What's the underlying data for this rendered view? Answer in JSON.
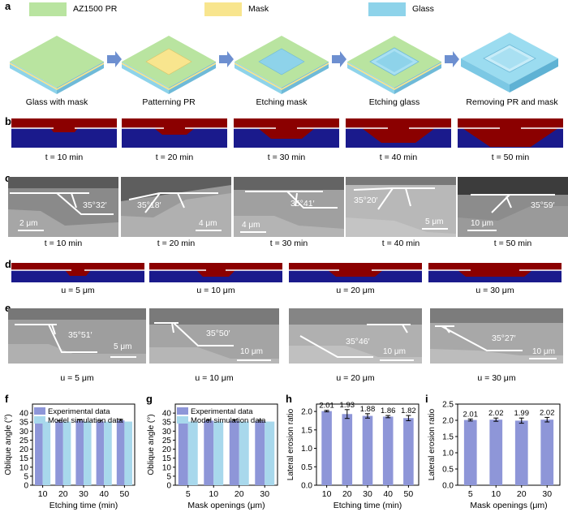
{
  "panel_letters": {
    "a": "a",
    "b": "b",
    "c": "c",
    "d": "d",
    "e": "e",
    "f": "f",
    "g": "g",
    "h": "h",
    "i": "i"
  },
  "legend_a": [
    {
      "label": "AZ1500 PR",
      "color": "#b9e4a0"
    },
    {
      "label": "Mask",
      "color": "#f8e58e"
    },
    {
      "label": "Glass",
      "color": "#8ed3ea"
    }
  ],
  "steps": [
    "Glass with mask",
    "Patterning PR",
    "Etching mask",
    "Etching glass",
    "Removing PR and mask"
  ],
  "sim_b_captions": [
    "t = 10 min",
    "t = 20 min",
    "t = 30 min",
    "t = 40 min",
    "t = 50 min"
  ],
  "sem_c": [
    {
      "caption": "t = 10 min",
      "angle": "35°32′",
      "scale": "2 μm"
    },
    {
      "caption": "t = 20 min",
      "angle": "35°18′",
      "scale": "4 μm"
    },
    {
      "caption": "t = 30 min",
      "angle": "35°41′",
      "scale": "4 μm"
    },
    {
      "caption": "t = 40 min",
      "angle": "35°20′",
      "scale": "5 μm"
    },
    {
      "caption": "t = 50 min",
      "angle": "35°59′",
      "scale": "10 μm"
    }
  ],
  "sim_d_captions": [
    "u = 5 μm",
    "u = 10 μm",
    "u = 20 μm",
    "u = 30 μm"
  ],
  "sem_e": [
    {
      "caption": "u = 5 μm",
      "angle": "35°51′",
      "scale": "5 μm"
    },
    {
      "caption": "u = 10 μm",
      "angle": "35°50′",
      "scale": "10 μm"
    },
    {
      "caption": "u = 20 μm",
      "angle": "35°46′",
      "scale": "10 μm"
    },
    {
      "caption": "u = 30 μm",
      "angle": "35°27′",
      "scale": "10 μm"
    }
  ],
  "colors": {
    "sim_red": "#8b0000",
    "sim_blue": "#1a1a8c",
    "exp_bar": "#8e96d8",
    "sim_bar": "#a8d8ec",
    "ratio_bar": "#8e96d8"
  },
  "chart_data": [
    {
      "id": "f",
      "type": "bar",
      "categories": [
        "10",
        "20",
        "30",
        "40",
        "50"
      ],
      "xlabel": "Etching time (min)",
      "ylabel": "Oblique angle (°)",
      "ylim": [
        0,
        45
      ],
      "yticks": [
        0,
        5,
        10,
        15,
        20,
        25,
        30,
        35,
        40
      ],
      "legend": "top-left",
      "series": [
        {
          "name": "Experimental data",
          "values": [
            35.5,
            35.3,
            35.7,
            35.3,
            36.0
          ]
        },
        {
          "name": "Model simulation data",
          "values": [
            35.3,
            35.3,
            35.3,
            35.3,
            35.3
          ]
        }
      ]
    },
    {
      "id": "g",
      "type": "bar",
      "categories": [
        "5",
        "10",
        "20",
        "30"
      ],
      "xlabel": "Mask openings (μm)",
      "ylabel": "Oblique angle (°)",
      "ylim": [
        0,
        45
      ],
      "yticks": [
        0,
        5,
        10,
        15,
        20,
        25,
        30,
        35,
        40
      ],
      "legend": "top-left",
      "series": [
        {
          "name": "Experimental data",
          "values": [
            35.85,
            35.8,
            35.75,
            35.45
          ]
        },
        {
          "name": "Model simulation data",
          "values": [
            35.3,
            35.3,
            35.3,
            35.3
          ]
        }
      ]
    },
    {
      "id": "h",
      "type": "bar",
      "categories": [
        "10",
        "20",
        "30",
        "40",
        "50"
      ],
      "xlabel": "Etching time (min)",
      "ylabel": "Lateral erosion ratio",
      "ylim": [
        0,
        2.2
      ],
      "yticks": [
        0,
        0.5,
        1.0,
        1.5,
        2.0
      ],
      "values": [
        2.01,
        1.93,
        1.88,
        1.86,
        1.82
      ],
      "data_labels": [
        "2.01",
        "1.93",
        "1.88",
        "1.86",
        "1.82"
      ],
      "errors": [
        0.02,
        0.12,
        0.06,
        0.03,
        0.07
      ]
    },
    {
      "id": "i",
      "type": "bar",
      "categories": [
        "5",
        "10",
        "20",
        "30"
      ],
      "xlabel": "Mask openings (μm)",
      "ylabel": "Lateral erosion ratio",
      "ylim": [
        0,
        2.5
      ],
      "yticks": [
        0,
        0.5,
        1.0,
        1.5,
        2.0,
        2.5
      ],
      "values": [
        2.01,
        2.02,
        1.99,
        2.02
      ],
      "data_labels": [
        "2.01",
        "2.02",
        "1.99",
        "2.02"
      ],
      "errors": [
        0.03,
        0.05,
        0.08,
        0.07
      ]
    }
  ]
}
